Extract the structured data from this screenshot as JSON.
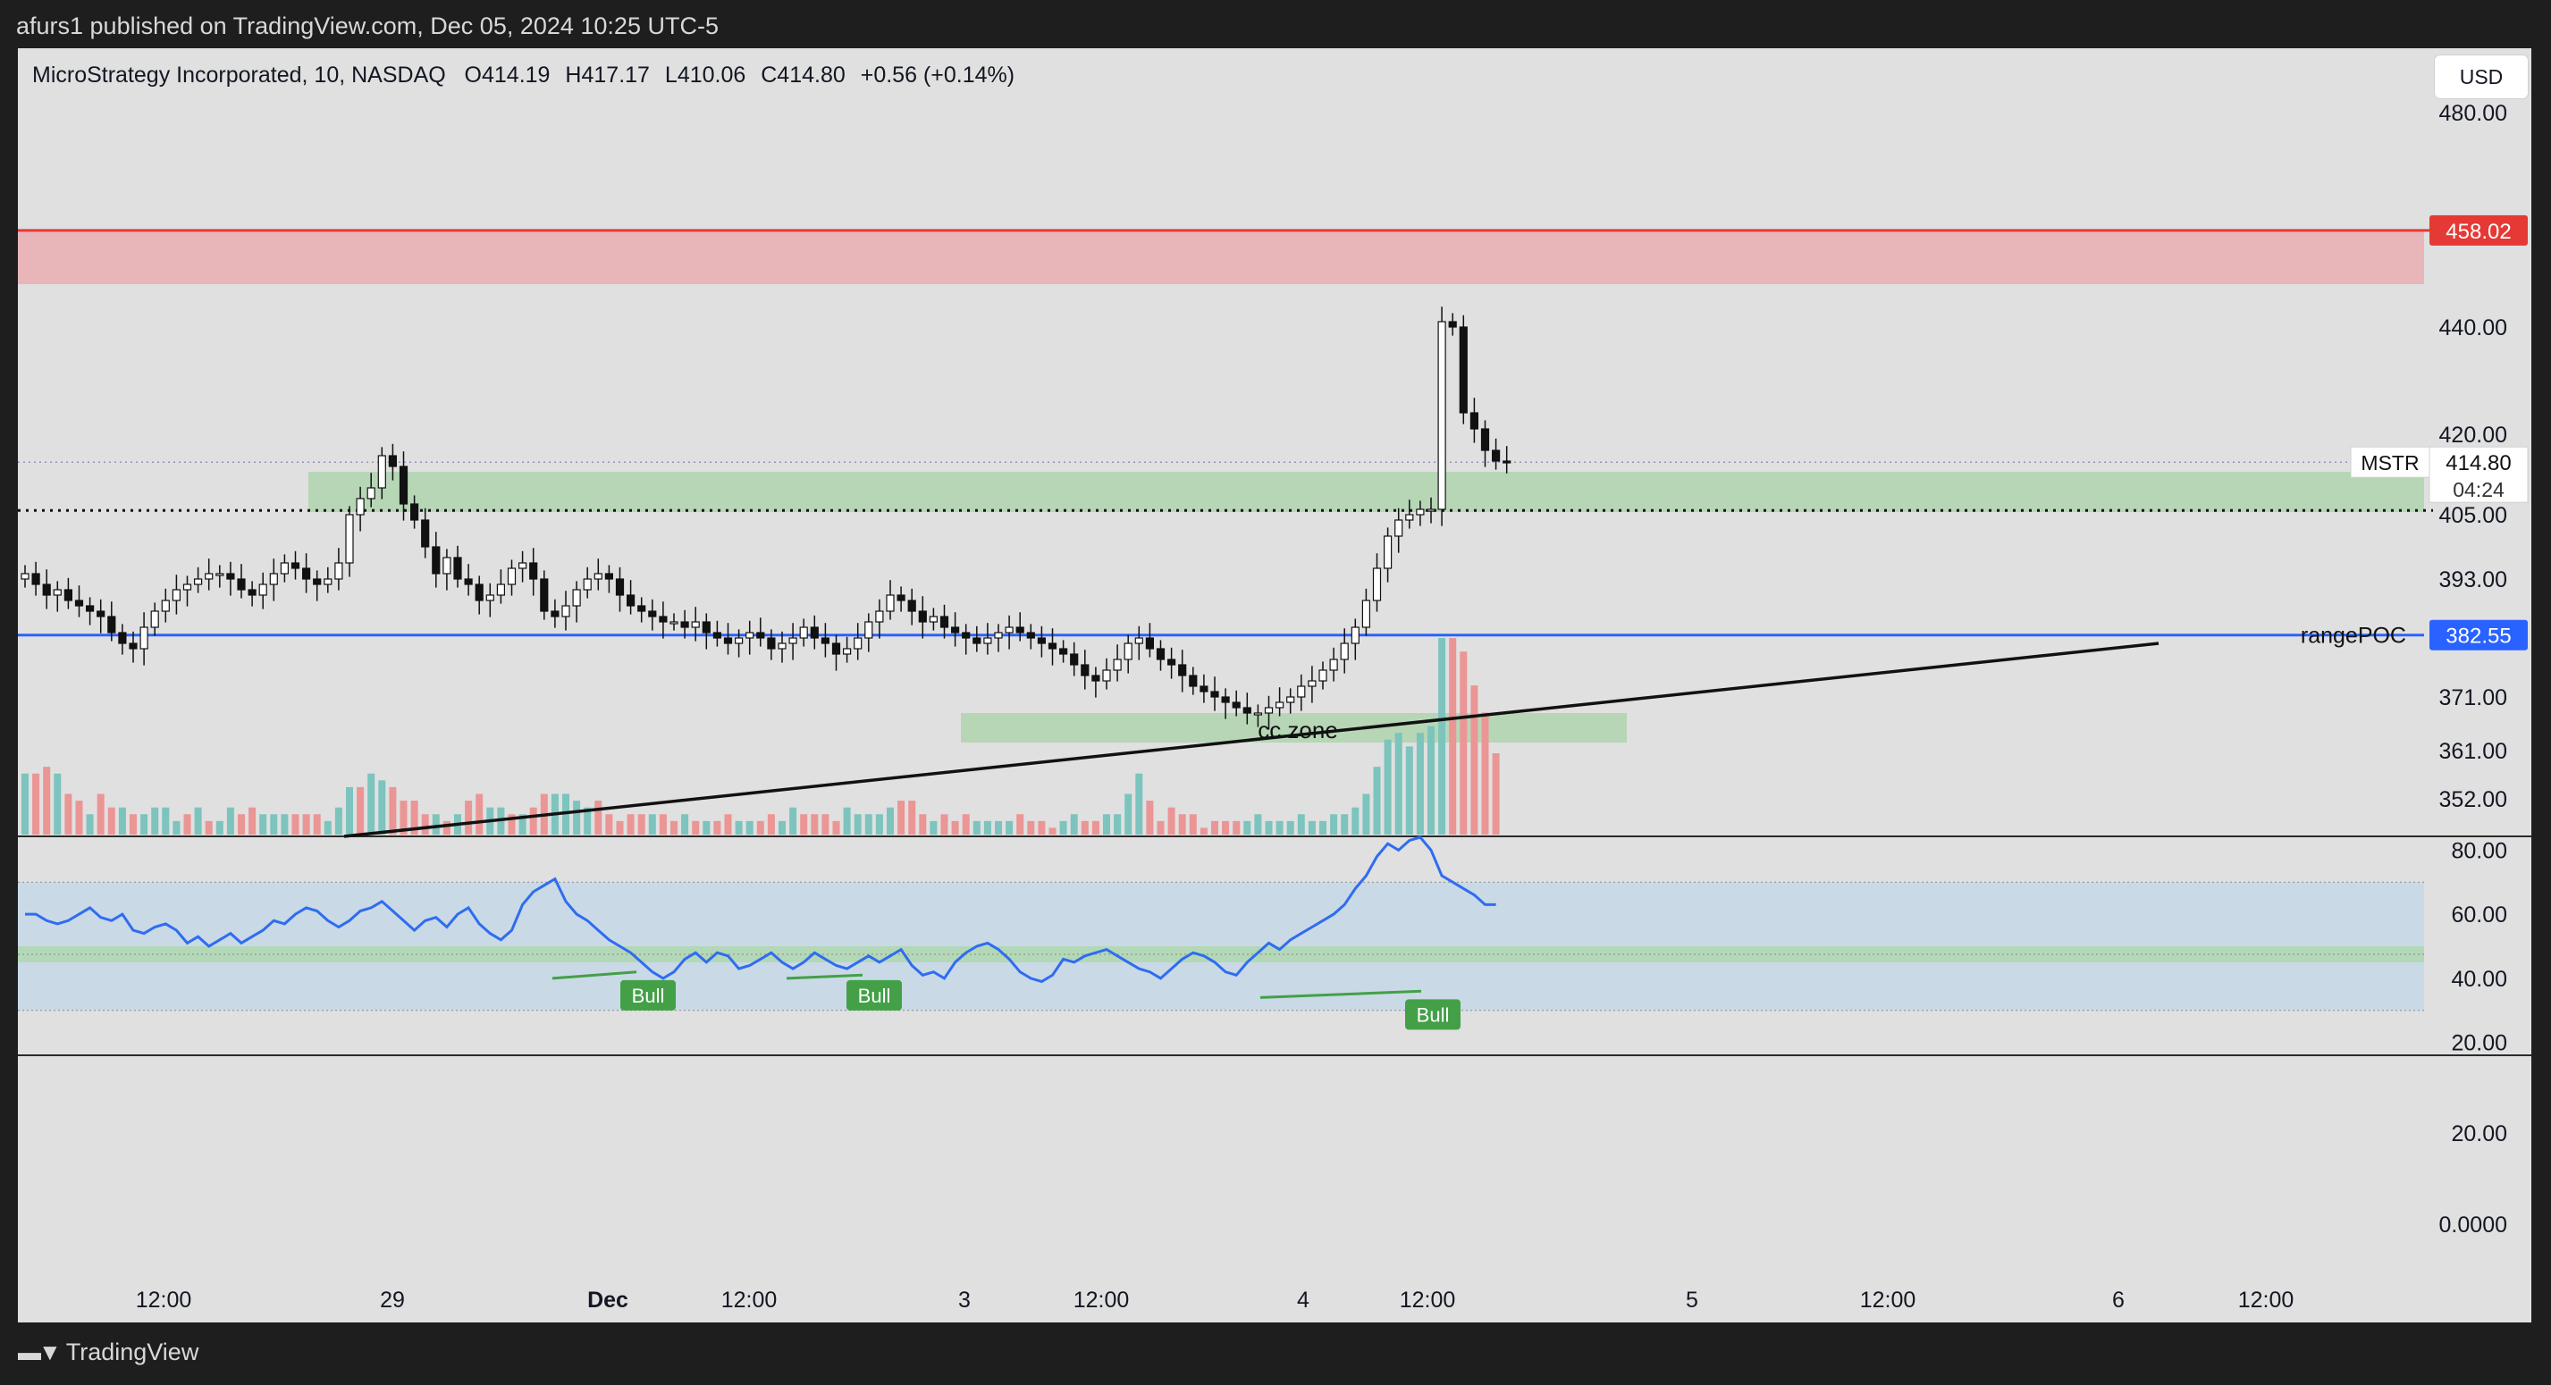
{
  "header": {
    "published_by": "afurs1 published on TradingView.com, Dec 05, 2024 10:25 UTC-5"
  },
  "legend": {
    "symbol": "MicroStrategy Incorporated, 10, NASDAQ",
    "open_label": "O",
    "open": "414.19",
    "high_label": "H",
    "high": "417.17",
    "low_label": "L",
    "low": "410.06",
    "close_label": "C",
    "close": "414.80",
    "change": "+0.56 (+0.14%)"
  },
  "currency_button": "USD",
  "price_tags": {
    "resistance": "458.02",
    "last_price": "414.80",
    "countdown": "04:24",
    "symbol_tag": "MSTR",
    "range_poc": "382.55",
    "range_poc_label": "rangePOC"
  },
  "annotations": {
    "cc_zone": "cc zone",
    "bull_labels": [
      "Bull",
      "Bull",
      "Bull"
    ]
  },
  "branding": {
    "name": "TradingView"
  },
  "colors": {
    "background": "#e0e0e0",
    "frame": "#1e1e1e",
    "up_volume": "#7cc4bd",
    "down_volume": "#eb9595",
    "resistance_line": "#e53935",
    "resistance_zone": "#e8b5b9",
    "support_zone": "#b6d6b6",
    "range_poc_line": "#2962ff",
    "rsi_line": "#2f6cf0",
    "rsi_band": "#c9d9e6",
    "rsi_mid_band": "#b3d8b7",
    "bull_label": "#43a047"
  },
  "chart_data": [
    {
      "type": "candlestick",
      "title": "MicroStrategy Incorporated, 10, NASDAQ",
      "ylim": [
        345,
        492
      ],
      "y_ticks": [
        "480.00",
        "440.00",
        "420.00",
        "405.00",
        "393.00",
        "371.00",
        "361.00",
        "352.00"
      ],
      "y_tick_values": [
        480,
        440,
        420,
        405,
        393,
        371,
        361,
        352
      ],
      "x_ticks": [
        "12:00",
        "29",
        "Dec",
        "12:00",
        "3",
        "12:00",
        "4",
        "12:00",
        "5",
        "12:00",
        "6",
        "12:00"
      ],
      "levels": [
        {
          "name": "resistance",
          "value": 458.02
        },
        {
          "name": "rangePOC",
          "value": 382.55
        },
        {
          "name": "dotted_level",
          "value": 405.8
        }
      ],
      "zones": [
        {
          "name": "supply",
          "from": 448,
          "to": 458.02
        },
        {
          "name": "demand",
          "from": 405.5,
          "to": 413
        },
        {
          "name": "cc zone",
          "from": 362.5,
          "to": 368
        }
      ],
      "trendline": {
        "from": 345,
        "to": 381
      },
      "closes": [
        394,
        392,
        390,
        391,
        389,
        388,
        387,
        386,
        383,
        381,
        380,
        384,
        387,
        389,
        391,
        392,
        393,
        394,
        394,
        393,
        391,
        390,
        392,
        394,
        396,
        395,
        393,
        392,
        393,
        396,
        405,
        408,
        410,
        416,
        414,
        407,
        404,
        399,
        394,
        397,
        393,
        392,
        389,
        390,
        392,
        395,
        396,
        393,
        387,
        386,
        388,
        391,
        393,
        394,
        393,
        390,
        388,
        387,
        386,
        385,
        385,
        384,
        385,
        383,
        382,
        381,
        382,
        383,
        382,
        380,
        381,
        382,
        384,
        382,
        381,
        379,
        380,
        382,
        385,
        387,
        390,
        389,
        387,
        385,
        386,
        384,
        383,
        382,
        381,
        382,
        383,
        384,
        383,
        382,
        381,
        380,
        379,
        377,
        375,
        374,
        376,
        378,
        381,
        382,
        380,
        378,
        377,
        375,
        373,
        372,
        371,
        370,
        369,
        368,
        368,
        369,
        370,
        371,
        373,
        374,
        376,
        378,
        381,
        384,
        389,
        395,
        401,
        404,
        405,
        406,
        406,
        441,
        440,
        424,
        421,
        417,
        415,
        414.8
      ]
    },
    {
      "type": "bar",
      "name": "volume",
      "values": [
        9,
        9,
        10,
        9,
        6,
        5,
        3,
        6,
        4,
        4,
        3,
        3,
        4,
        4,
        2,
        3,
        4,
        2,
        2,
        4,
        3,
        4,
        3,
        3,
        3,
        3,
        3,
        3,
        2,
        4,
        7,
        7,
        9,
        8,
        7,
        5,
        5,
        3,
        3,
        2,
        3,
        5,
        6,
        4,
        4,
        3,
        3,
        4,
        6,
        6,
        6,
        5,
        4,
        5,
        3,
        2,
        3,
        3,
        3,
        3,
        2,
        3,
        2,
        2,
        2,
        3,
        2,
        2,
        2,
        3,
        2,
        4,
        3,
        3,
        3,
        2,
        4,
        3,
        3,
        3,
        4,
        5,
        5,
        3,
        2,
        3,
        2,
        3,
        2,
        2,
        2,
        2,
        3,
        2,
        2,
        1,
        2,
        3,
        2,
        2,
        3,
        3,
        6,
        9,
        5,
        2,
        4,
        3,
        3,
        1,
        2,
        2,
        2,
        2,
        3,
        2,
        2,
        2,
        3,
        2,
        2,
        3,
        3,
        4,
        6,
        10,
        14,
        15,
        13,
        15,
        16,
        29,
        29,
        27,
        22,
        18,
        12
      ],
      "up": [
        1,
        0,
        0,
        1,
        0,
        0,
        1,
        0,
        0,
        1,
        0,
        1,
        1,
        1,
        1,
        0,
        1,
        0,
        1,
        1,
        0,
        0,
        1,
        1,
        1,
        0,
        0,
        0,
        1,
        1,
        1,
        0,
        1,
        1,
        0,
        0,
        0,
        0,
        1,
        0,
        1,
        0,
        0,
        1,
        1,
        0,
        1,
        0,
        0,
        1,
        1,
        1,
        1,
        0,
        0,
        0,
        0,
        0,
        1,
        0,
        0,
        1,
        0,
        1,
        0,
        0,
        1,
        1,
        0,
        0,
        1,
        1,
        0,
        0,
        0,
        0,
        1,
        1,
        1,
        1,
        1,
        0,
        0,
        0,
        1,
        0,
        0,
        0,
        1,
        1,
        1,
        1,
        0,
        0,
        0,
        0,
        1,
        1,
        0,
        0,
        1,
        1,
        1,
        1,
        0,
        0,
        0,
        0,
        0,
        0,
        0,
        0,
        0,
        1,
        1,
        1,
        1,
        1,
        1,
        1,
        1,
        1,
        1,
        1,
        1,
        1,
        1,
        1,
        1,
        1,
        1,
        1,
        0,
        0,
        0,
        0,
        0
      ]
    },
    {
      "type": "line",
      "name": "RSI",
      "ylim": [
        16,
        84
      ],
      "y_ticks": [
        "80.00",
        "60.00",
        "40.00",
        "20.00"
      ],
      "y_tick_values": [
        80,
        60,
        40,
        20
      ],
      "bands": {
        "upper": 70,
        "lower": 30,
        "mid_from": 45,
        "mid_to": 50
      },
      "values": [
        60,
        60,
        58,
        57,
        58,
        60,
        62,
        59,
        58,
        60,
        55,
        54,
        56,
        57,
        55,
        51,
        53,
        50,
        52,
        54,
        51,
        53,
        55,
        58,
        57,
        60,
        62,
        61,
        58,
        56,
        58,
        61,
        62,
        64,
        61,
        58,
        55,
        58,
        59,
        56,
        60,
        62,
        57,
        54,
        52,
        55,
        63,
        67,
        69,
        71,
        64,
        60,
        58,
        55,
        52,
        50,
        48,
        45,
        42,
        40,
        42,
        46,
        48,
        45,
        48,
        47,
        43,
        44,
        46,
        48,
        45,
        43,
        45,
        48,
        46,
        44,
        43,
        45,
        47,
        45,
        47,
        49,
        44,
        41,
        42,
        40,
        45,
        48,
        50,
        51,
        49,
        46,
        42,
        40,
        39,
        41,
        46,
        45,
        47,
        48,
        49,
        47,
        45,
        43,
        42,
        40,
        43,
        46,
        48,
        47,
        45,
        42,
        41,
        45,
        48,
        51,
        49,
        52,
        54,
        56,
        58,
        60,
        63,
        68,
        72,
        78,
        82,
        80,
        83,
        84,
        80,
        72,
        70,
        68,
        66,
        63,
        63
      ],
      "divergences": [
        {
          "label": "Bull",
          "from": 40,
          "to": 42
        },
        {
          "label": "Bull",
          "from": 40,
          "to": 41
        },
        {
          "label": "Bull",
          "from": 34,
          "to": 36
        }
      ]
    },
    {
      "type": "line",
      "name": "lower pane",
      "y_ticks": [
        "20.00",
        "0.0000"
      ],
      "y_tick_values": [
        20,
        0
      ],
      "values": []
    }
  ]
}
